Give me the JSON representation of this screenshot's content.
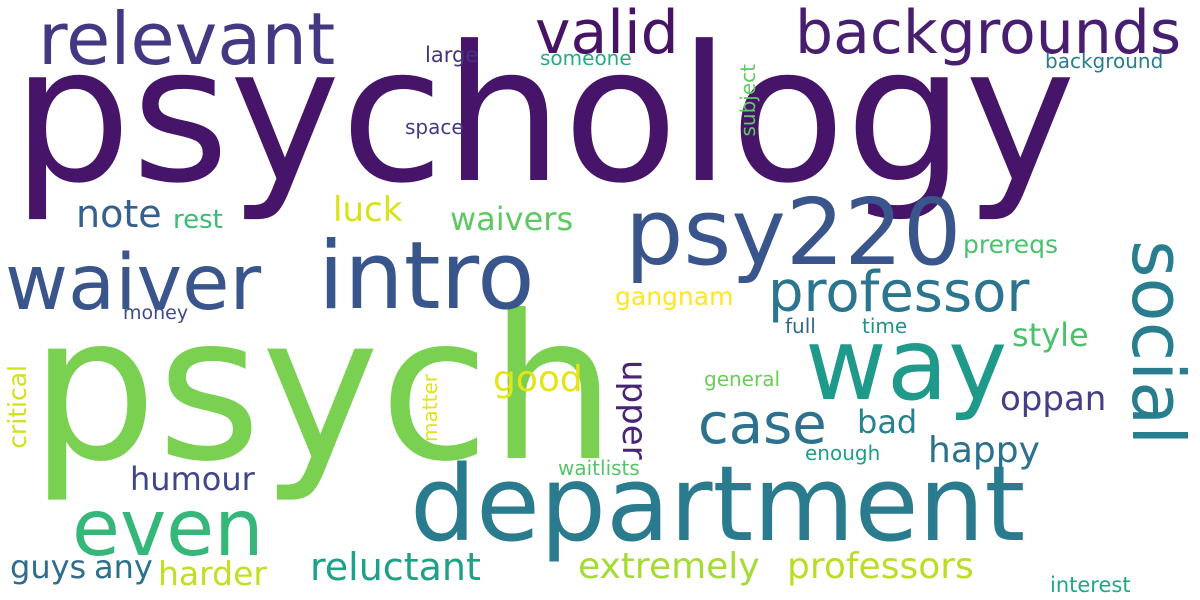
{
  "words": [
    {
      "id": "psychology",
      "text": "psychology",
      "color": "#461569"
    },
    {
      "id": "psych",
      "text": "psych",
      "color": "#7ad151"
    },
    {
      "id": "department",
      "text": "department",
      "color": "#2a7b8e"
    },
    {
      "id": "intro",
      "text": "intro",
      "color": "#39568c"
    },
    {
      "id": "psy220",
      "text": "psy220",
      "color": "#3a548c"
    },
    {
      "id": "waiver",
      "text": "waiver",
      "color": "#39558c"
    },
    {
      "id": "way",
      "text": "way",
      "color": "#1f9a8a"
    },
    {
      "id": "relevant",
      "text": "relevant",
      "color": "#453781"
    },
    {
      "id": "backgrounds",
      "text": "backgrounds",
      "color": "#481f70"
    },
    {
      "id": "social",
      "text": "social",
      "color": "#287d8e"
    },
    {
      "id": "even",
      "text": "even",
      "color": "#35b779"
    },
    {
      "id": "valid",
      "text": "valid",
      "color": "#471366"
    },
    {
      "id": "professor",
      "text": "professor",
      "color": "#2b758e"
    },
    {
      "id": "case",
      "text": "case",
      "color": "#2c718e"
    },
    {
      "id": "extremely",
      "text": "extremely",
      "color": "#a5db36"
    },
    {
      "id": "professors",
      "text": "professors",
      "color": "#bade28"
    },
    {
      "id": "reluctant",
      "text": "reluctant",
      "color": "#1fa088"
    },
    {
      "id": "waivers",
      "text": "waivers",
      "color": "#5ec962"
    },
    {
      "id": "note",
      "text": "note",
      "color": "#355f8d"
    },
    {
      "id": "harder",
      "text": "harder",
      "color": "#c2df23"
    },
    {
      "id": "humour",
      "text": "humour",
      "color": "#3f4788"
    },
    {
      "id": "happy",
      "text": "happy",
      "color": "#2c718e"
    },
    {
      "id": "good",
      "text": "good",
      "color": "#e5e419"
    },
    {
      "id": "luck",
      "text": "luck",
      "color": "#d8e219"
    },
    {
      "id": "upper",
      "text": "upper",
      "color": "#482475"
    },
    {
      "id": "oppan",
      "text": "oppan",
      "color": "#433e85"
    },
    {
      "id": "style",
      "text": "style",
      "color": "#4ac16d"
    },
    {
      "id": "bad",
      "text": "bad",
      "color": "#26828e"
    },
    {
      "id": "guys",
      "text": "guys",
      "color": "#2f6c8e"
    },
    {
      "id": "any",
      "text": "any",
      "color": "#2d708e"
    },
    {
      "id": "gangnam",
      "text": "gangnam",
      "color": "#fde725"
    },
    {
      "id": "prereqs",
      "text": "prereqs",
      "color": "#4ac16d"
    },
    {
      "id": "rest",
      "text": "rest",
      "color": "#3bbb75"
    },
    {
      "id": "critical",
      "text": "critical",
      "color": "#d0e11c"
    },
    {
      "id": "subject",
      "text": "subject",
      "color": "#5ec962"
    },
    {
      "id": "large",
      "text": "large",
      "color": "#46337e"
    },
    {
      "id": "someone",
      "text": "someone",
      "color": "#25ac82"
    },
    {
      "id": "background",
      "text": "background",
      "color": "#277f8e"
    },
    {
      "id": "space",
      "text": "space",
      "color": "#443b84"
    },
    {
      "id": "money",
      "text": "money",
      "color": "#3e4a89"
    },
    {
      "id": "full",
      "text": "full",
      "color": "#31688e"
    },
    {
      "id": "time",
      "text": "time",
      "color": "#21918c"
    },
    {
      "id": "general",
      "text": "general",
      "color": "#6ccd5a"
    },
    {
      "id": "matter",
      "text": "matter",
      "color": "#e0e318"
    },
    {
      "id": "waitlists",
      "text": "waitlists",
      "color": "#52c569"
    },
    {
      "id": "enough",
      "text": "enough",
      "color": "#1f9e89"
    },
    {
      "id": "interest",
      "text": "interest",
      "color": "#22a785"
    }
  ]
}
